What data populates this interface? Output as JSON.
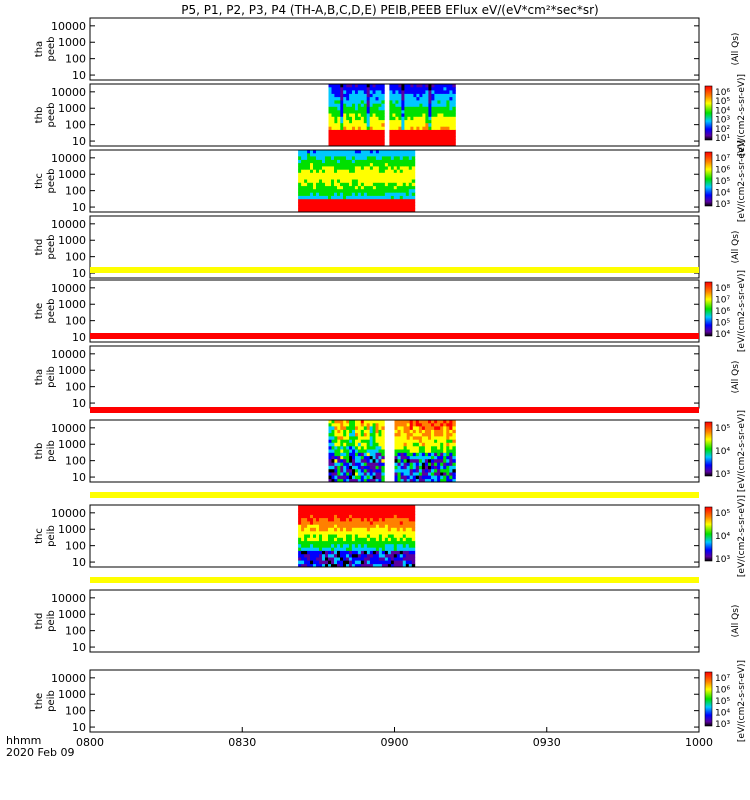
{
  "chart_data": {
    "type": "heatmap",
    "title": "P5, P1, P2, P3, P4 (TH-A,B,C,D,E) PEIB,PEEB EFlux eV/(eV*cm²*sec*sr)",
    "xaxis": {
      "label_line1": "hhmm",
      "label_line2": "2020 Feb 09",
      "range_min": [
        0,
        120
      ],
      "ticks": [
        {
          "label": "0800",
          "min": 0
        },
        {
          "label": "0830",
          "min": 30
        },
        {
          "label": "0900",
          "min": 60
        },
        {
          "label": "0930",
          "min": 90
        },
        {
          "label": "1000",
          "min": 120
        }
      ]
    },
    "energy_ticks": [
      "10",
      "100",
      "1000",
      "10000"
    ],
    "panels": [
      {
        "label1": "tha",
        "label2": "peeb",
        "cbar": null,
        "unit": "(All Qs)",
        "strip": null,
        "data": []
      },
      {
        "label1": "thb",
        "label2": "peeb",
        "cbar": [
          "10⁶",
          "10⁵",
          "10⁴",
          "10³",
          "10²",
          "10¹"
        ],
        "unit": "[eV/(cm2-s-sr-eV)]",
        "strip": null,
        "data": [
          {
            "from": 47,
            "to": 58,
            "kind": "electron_thb"
          },
          {
            "from": 59,
            "to": 72,
            "kind": "electron_thb2"
          }
        ]
      },
      {
        "label1": "thc",
        "label2": "peeb",
        "cbar": [
          "10⁷",
          "10⁶",
          "10⁵",
          "10⁴",
          "10³"
        ],
        "unit": "[eV/(cm2-s-sr-eV)]",
        "strip": null,
        "data": [
          {
            "from": 41,
            "to": 64,
            "kind": "electron_thc"
          }
        ]
      },
      {
        "label1": "thd",
        "label2": "peeb",
        "cbar": null,
        "unit": "(All Qs)",
        "strip": null,
        "data": []
      },
      {
        "label1": "the",
        "label2": "peeb",
        "cbar": [
          "10⁸",
          "10⁷",
          "10⁶",
          "10⁵",
          "10⁴"
        ],
        "unit": "[eV/(cm2-s-sr-eV)]",
        "strip": "yellow",
        "data": []
      },
      {
        "label1": "tha",
        "label2": "peib",
        "cbar": null,
        "unit": "(All Qs)",
        "strip": "red",
        "data": []
      },
      {
        "label1": "thb",
        "label2": "peib",
        "cbar": [
          "10⁵",
          "10⁴",
          "10³"
        ],
        "unit": "[eV/(cm2-s-sr-eV)]",
        "strip": "red",
        "data": [
          {
            "from": 47,
            "to": 58,
            "kind": "ion_thb"
          },
          {
            "from": 60,
            "to": 72,
            "kind": "ion_thb2"
          }
        ]
      },
      {
        "label1": "thc",
        "label2": "peib",
        "cbar": [
          "10⁵",
          "10⁴",
          "10³"
        ],
        "unit": "[eV/(cm2-s-sr-eV)]",
        "strip": "yellow",
        "data": [
          {
            "from": 41,
            "to": 64,
            "kind": "ion_thc"
          }
        ]
      },
      {
        "label1": "thd",
        "label2": "peib",
        "cbar": null,
        "unit": "(All Qs)",
        "strip": "yellow",
        "data": []
      },
      {
        "label1": "the",
        "label2": "peib",
        "cbar": [
          "10⁷",
          "10⁶",
          "10⁵",
          "10⁴",
          "10³"
        ],
        "unit": "[eV/(cm2-s-sr-eV)]",
        "strip": null,
        "data": []
      }
    ]
  }
}
